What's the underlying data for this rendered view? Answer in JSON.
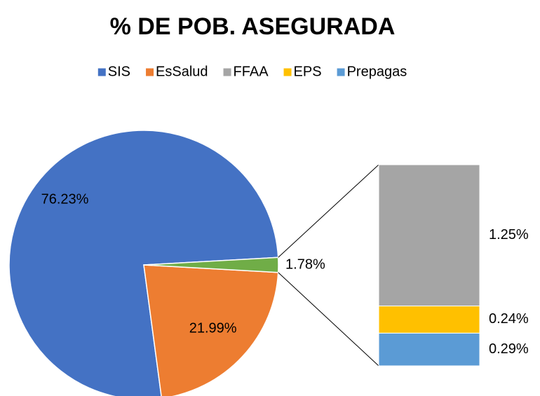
{
  "chart_data": {
    "type": "barofpie",
    "title": "% DE POB. ASEGURADA",
    "pie": {
      "categories": [
        "SIS",
        "EsSalud",
        null
      ],
      "values": [
        76.23,
        21.99,
        1.78
      ],
      "value_labels": [
        "76.23%",
        "21.99%",
        "1.78%"
      ],
      "colors": [
        "#4472c4",
        "#ed7d31",
        "#70ad47"
      ]
    },
    "bar": {
      "categories": [
        "FFAA",
        "EPS",
        "Prepagas"
      ],
      "values": [
        1.25,
        0.24,
        0.29
      ],
      "value_labels": [
        "1.25%",
        "0.24%",
        "0.29%"
      ],
      "colors": [
        "#a5a5a5",
        "#ffc000",
        "#5b9bd5"
      ]
    },
    "legend": "top"
  }
}
